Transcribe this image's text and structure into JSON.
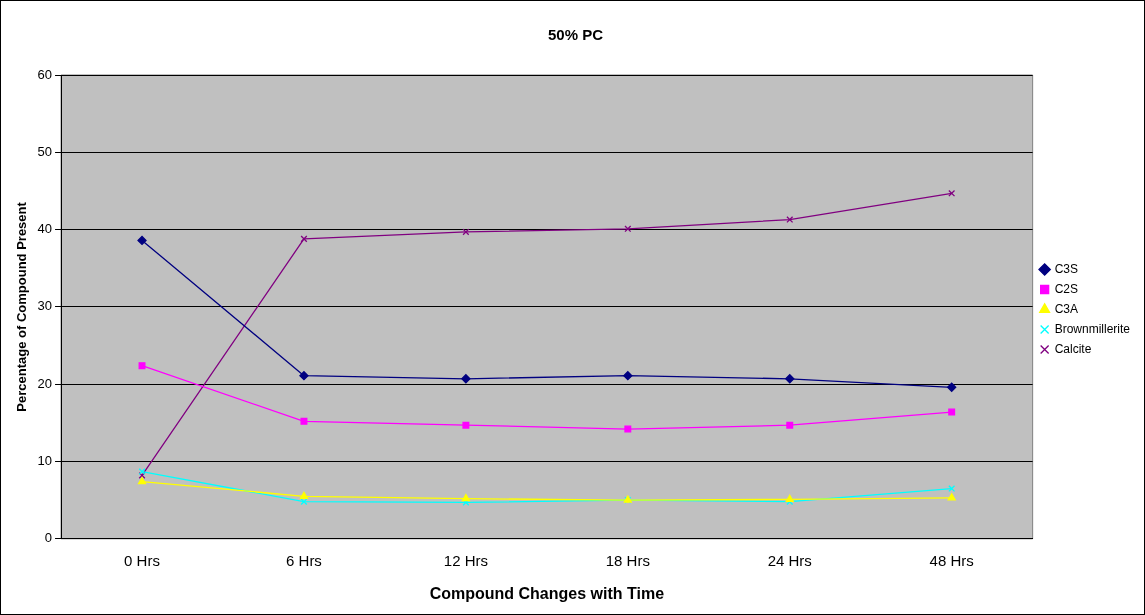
{
  "chart_data": {
    "type": "line",
    "title": "50% PC",
    "xlabel": "Compound Changes with Time",
    "ylabel": "Percentage of Compound Present",
    "categories": [
      "0 Hrs",
      "6 Hrs",
      "12 Hrs",
      "18 Hrs",
      "24 Hrs",
      "48 Hrs"
    ],
    "ylim": [
      0,
      60
    ],
    "yticks": [
      0,
      10,
      20,
      30,
      40,
      50,
      60
    ],
    "grid": "y",
    "legend": "right",
    "line_style": "solid",
    "series": [
      {
        "name": "C3S",
        "color": "#000080",
        "marker": "diamond",
        "values": [
          38.6,
          21.1,
          20.7,
          21.1,
          20.7,
          19.6
        ]
      },
      {
        "name": "C2S",
        "color": "#ff00ff",
        "marker": "square",
        "values": [
          22.4,
          15.2,
          14.7,
          14.2,
          14.7,
          16.4
        ]
      },
      {
        "name": "C3A",
        "color": "#ffff00",
        "marker": "triangle",
        "values": [
          7.4,
          5.5,
          5.2,
          5.0,
          5.1,
          5.3
        ]
      },
      {
        "name": "Brownmillerite",
        "color": "#00ffff",
        "marker": "cross",
        "values": [
          8.7,
          4.8,
          4.7,
          5.0,
          4.8,
          6.5
        ]
      },
      {
        "name": "Calcite",
        "color": "#800080",
        "marker": "cross",
        "values": [
          8.2,
          38.8,
          39.7,
          40.1,
          41.3,
          44.7
        ]
      }
    ]
  }
}
